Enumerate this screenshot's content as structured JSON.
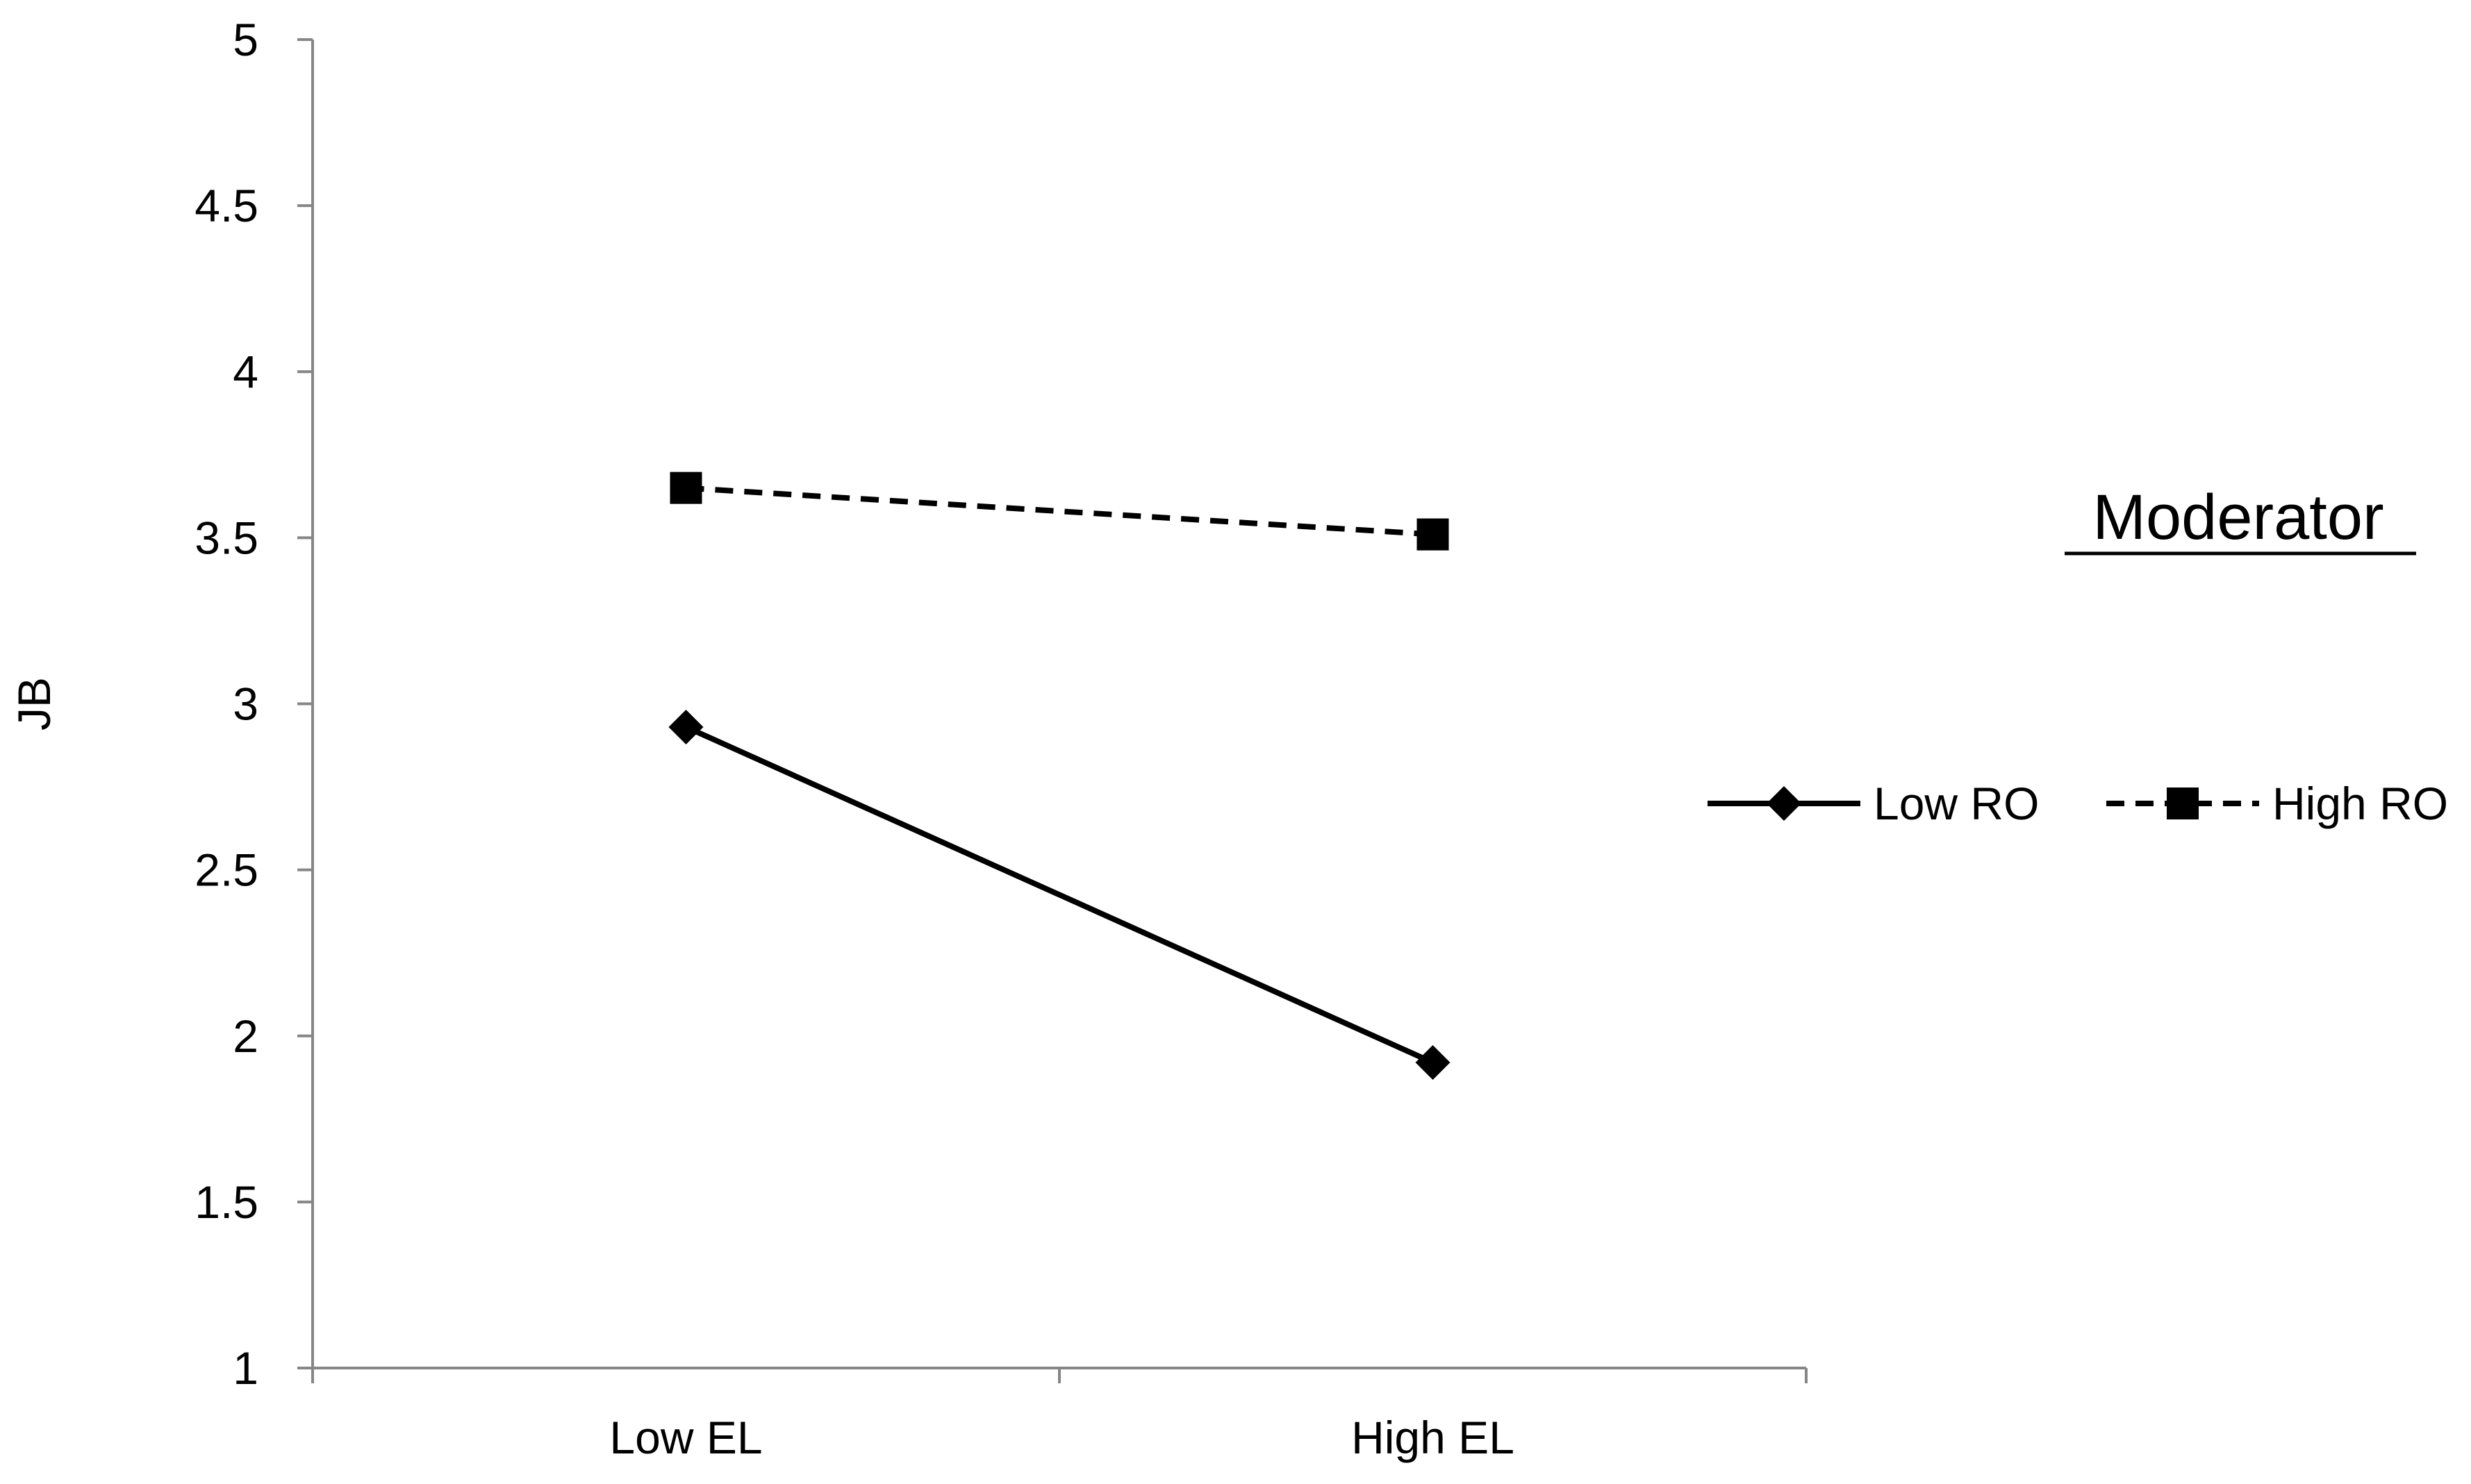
{
  "chart_data": {
    "type": "line",
    "ylabel": "JB",
    "xlabel": "",
    "ylim": [
      1,
      5
    ],
    "yticks": [
      1,
      1.5,
      2,
      2.5,
      3,
      3.5,
      4,
      4.5,
      5
    ],
    "categories": [
      "Low EL",
      "High EL"
    ],
    "series": [
      {
        "name": "Low RO",
        "values": [
          2.93,
          1.92
        ],
        "marker": "diamond",
        "line": "solid",
        "color": "#000000"
      },
      {
        "name": "High RO",
        "values": [
          3.65,
          3.51
        ],
        "marker": "square",
        "line": "dashed",
        "color": "#000000"
      }
    ],
    "legend": {
      "title": "Moderator",
      "placement": "right"
    },
    "grid": false
  }
}
